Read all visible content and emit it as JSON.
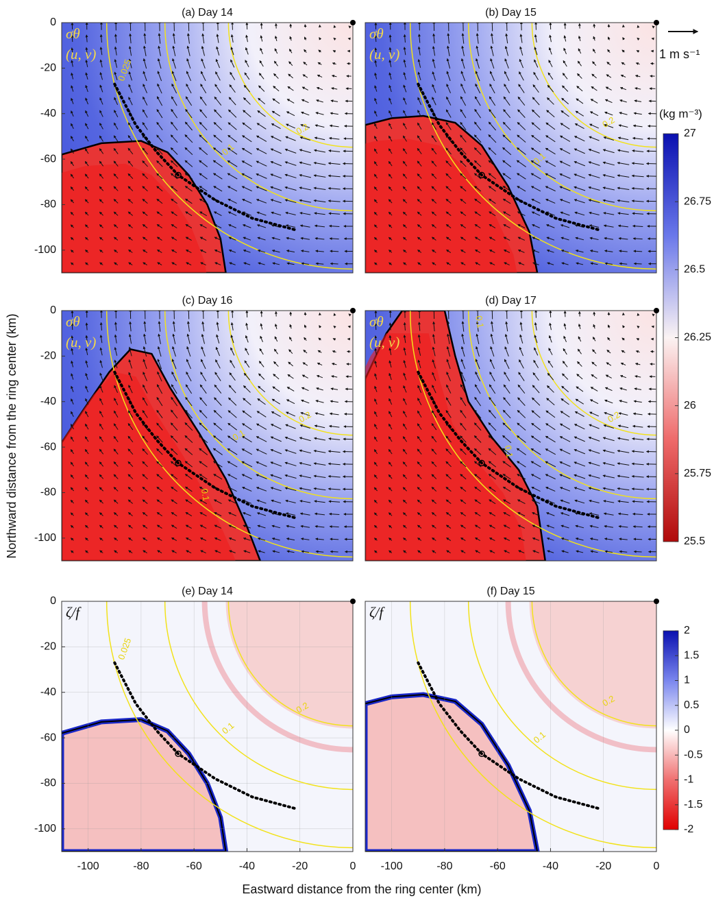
{
  "figure": {
    "xlabel": "Eastward distance from the ring center (km)",
    "ylabel": "Northward distance from the ring center (km)",
    "scale_label": "1 m s⁻¹",
    "colorbars": [
      {
        "label": "(kg m⁻³)",
        "lim": [
          25.5,
          27
        ],
        "ticks": [
          25.5,
          25.75,
          26,
          26.25,
          26.5,
          26.75,
          27
        ]
      },
      {
        "lim": [
          -2,
          2
        ],
        "ticks": [
          -2,
          -1.5,
          -1,
          -0.5,
          0,
          0.5,
          1,
          1.5,
          2
        ]
      }
    ]
  },
  "chart_data": [
    {
      "type": "heatmap",
      "title": "(a) Day 14",
      "field_labels": [
        "σθ",
        "(u, v)"
      ],
      "contour_labels": [
        "0.025",
        "0.1",
        "0.2"
      ],
      "xlim": [
        -110,
        0
      ],
      "ylim": [
        -110,
        0
      ],
      "yticks": [
        0,
        -20,
        -40,
        -60,
        -80,
        -100
      ],
      "grid": false
    },
    {
      "type": "heatmap",
      "title": "(b) Day 15",
      "field_labels": [
        "σθ",
        "(u, v)"
      ],
      "contour_labels": [
        "0.1",
        "0.2"
      ],
      "xlim": [
        -110,
        0
      ],
      "ylim": [
        -110,
        0
      ],
      "grid": false
    },
    {
      "type": "heatmap",
      "title": "(c) Day 16",
      "field_labels": [
        "σθ",
        "(u, v)"
      ],
      "contour_labels": [
        "0.1",
        "0.2",
        "0.1"
      ],
      "xlim": [
        -110,
        0
      ],
      "ylim": [
        -110,
        0
      ],
      "yticks": [
        0,
        -20,
        -40,
        -60,
        -80,
        -100
      ],
      "grid": false
    },
    {
      "type": "heatmap",
      "title": "(d) Day 17",
      "field_labels": [
        "σθ",
        "(u, v)"
      ],
      "contour_labels": [
        "0.1",
        "0.2",
        "0.1"
      ],
      "xlim": [
        -110,
        0
      ],
      "ylim": [
        -110,
        0
      ],
      "grid": false
    },
    {
      "type": "heatmap",
      "title": "(e) Day 14",
      "field_labels": [
        "ζ/f"
      ],
      "contour_labels": [
        "0.025",
        "0.1",
        "0.2"
      ],
      "xlim": [
        -110,
        0
      ],
      "ylim": [
        -110,
        0
      ],
      "xticks": [
        -100,
        -80,
        -60,
        -40,
        -20,
        0
      ],
      "yticks": [
        0,
        -20,
        -40,
        -60,
        -80,
        -100
      ],
      "grid": true
    },
    {
      "type": "heatmap",
      "title": "(f) Day 15",
      "field_labels": [
        "ζ/f"
      ],
      "contour_labels": [
        "0.1",
        "0.2"
      ],
      "xlim": [
        -110,
        0
      ],
      "ylim": [
        -110,
        0
      ],
      "xticks": [
        -100,
        -80,
        -60,
        -40,
        -20,
        0
      ],
      "grid": true
    }
  ]
}
